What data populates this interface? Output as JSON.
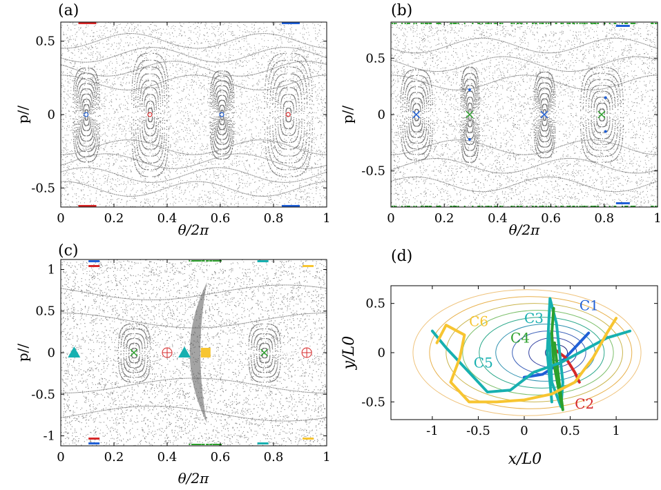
{
  "colors": {
    "scatter": "#8a8a8a",
    "red": "#d62728",
    "blue": "#1f5fd6",
    "green": "#2ca02c",
    "teal": "#17b0b0",
    "yellow": "#f7c531",
    "contour_dark": "#1a237e",
    "contour_mid": "#2aa88a",
    "contour_light": "#e8b04a"
  },
  "chart_data": [
    {
      "panel": "(a)",
      "type": "scatter",
      "title": "",
      "xlabel": "θ/2π",
      "ylabel": "p//",
      "xlim": [
        0,
        1
      ],
      "ylim": [
        -0.63,
        0.63
      ],
      "xticks": [
        "0",
        "0.2",
        "0.4",
        "0.6",
        "0.8",
        "1"
      ],
      "yticks": [
        "-0.5",
        "0",
        "0.5"
      ],
      "islands": [
        {
          "x": 0.095,
          "type": "o-point",
          "color": "blue"
        },
        {
          "x": 0.335,
          "type": "o-point",
          "color": "red"
        },
        {
          "x": 0.605,
          "type": "o-point",
          "color": "blue"
        },
        {
          "x": 0.855,
          "type": "o-point",
          "color": "red"
        }
      ],
      "boundary_marks": [
        {
          "x": 0.1,
          "edge": "both",
          "color": "red"
        },
        {
          "x": 0.865,
          "edge": "both",
          "color": "blue"
        }
      ],
      "grid": false
    },
    {
      "panel": "(b)",
      "type": "scatter",
      "title": "",
      "xlabel": "θ/2π",
      "ylabel": "p//",
      "xlim": [
        0,
        1
      ],
      "ylim": [
        -0.82,
        0.82
      ],
      "xticks": [
        "0",
        "0.2",
        "0.4",
        "0.6",
        "0.8",
        "1"
      ],
      "yticks": [
        "-0.5",
        "0",
        "0.5"
      ],
      "islands": [
        {
          "x": 0.095,
          "type": "x-point",
          "color": "blue"
        },
        {
          "x": 0.295,
          "type": "x-point",
          "color": "green"
        },
        {
          "x": 0.575,
          "type": "x-point",
          "color": "blue"
        },
        {
          "x": 0.79,
          "type": "x-point",
          "color": "green"
        }
      ],
      "boundary_marks": [
        {
          "x": 0.87,
          "edge": "both",
          "color": "blue"
        }
      ],
      "grid": false
    },
    {
      "panel": "(c)",
      "type": "scatter",
      "title": "",
      "xlabel": "θ/2π",
      "ylabel": "p//",
      "xlim": [
        0,
        1
      ],
      "ylim": [
        -1.12,
        1.12
      ],
      "xticks": [
        "0",
        "0.2",
        "0.4",
        "0.6",
        "0.8",
        "1"
      ],
      "yticks": [
        "-1",
        "-0.5",
        "0",
        "0.5",
        "1"
      ],
      "markers": [
        {
          "x": 0.05,
          "y": 0,
          "shape": "triangle",
          "color": "teal"
        },
        {
          "x": 0.465,
          "y": 0,
          "shape": "triangle",
          "color": "teal"
        },
        {
          "x": 0.545,
          "y": 0,
          "shape": "square",
          "color": "yellow"
        },
        {
          "x": 0.275,
          "y": 0,
          "shape": "x-point",
          "color": "green"
        },
        {
          "x": 0.4,
          "y": 0,
          "shape": "circle-cross",
          "color": "red"
        },
        {
          "x": 0.765,
          "y": 0,
          "shape": "x-point",
          "color": "green"
        },
        {
          "x": 0.925,
          "y": 0,
          "shape": "circle-cross",
          "color": "red"
        }
      ],
      "grid": false
    },
    {
      "panel": "(d)",
      "type": "line",
      "title": "",
      "xlabel": "x/L0",
      "ylabel": "y/L0",
      "xlim": [
        -1.45,
        1.45
      ],
      "ylim": [
        -0.68,
        0.68
      ],
      "xticks": [
        "-1",
        "-0.5",
        "0",
        "0.5",
        "1"
      ],
      "yticks": [
        "-0.5",
        "0",
        "0.5"
      ],
      "series": [
        {
          "name": "C1",
          "color": "blue"
        },
        {
          "name": "C2",
          "color": "red"
        },
        {
          "name": "C3",
          "color": "teal"
        },
        {
          "name": "C4",
          "color": "green"
        },
        {
          "name": "C5",
          "color": "teal"
        },
        {
          "name": "C6",
          "color": "yellow"
        }
      ],
      "curves": {
        "C1": [
          [
            0.0,
            -0.25
          ],
          [
            0.2,
            -0.22
          ],
          [
            0.4,
            -0.1
          ],
          [
            0.6,
            0.1
          ],
          [
            0.7,
            0.2
          ]
        ],
        "C2": [
          [
            0.35,
            0.02
          ],
          [
            0.45,
            -0.05
          ],
          [
            0.55,
            -0.2
          ],
          [
            0.6,
            -0.3
          ]
        ],
        "C3": [
          [
            0.3,
            -0.5
          ],
          [
            0.25,
            0.0
          ],
          [
            0.28,
            0.55
          ],
          [
            0.35,
            0.3
          ],
          [
            0.42,
            -0.3
          ],
          [
            0.4,
            -0.55
          ],
          [
            0.3,
            -0.3
          ],
          [
            0.27,
            0.2
          ]
        ],
        "C4": [
          [
            0.32,
            0.45
          ],
          [
            0.3,
            0.2
          ],
          [
            0.32,
            -0.1
          ],
          [
            0.4,
            -0.5
          ],
          [
            0.42,
            -0.58
          ],
          [
            0.38,
            -0.3
          ],
          [
            0.33,
            0.1
          ]
        ],
        "C5": [
          [
            -1.0,
            0.22
          ],
          [
            -0.85,
            0.05
          ],
          [
            -0.65,
            -0.15
          ],
          [
            -0.4,
            -0.4
          ],
          [
            -0.15,
            -0.38
          ],
          [
            0.1,
            -0.2
          ],
          [
            0.4,
            -0.1
          ],
          [
            0.7,
            0.05
          ],
          [
            0.9,
            0.15
          ],
          [
            1.15,
            0.22
          ]
        ],
        "C6": [
          [
            -0.95,
            0.1
          ],
          [
            -0.85,
            0.28
          ],
          [
            -0.65,
            0.18
          ],
          [
            -0.7,
            -0.05
          ],
          [
            -0.8,
            -0.3
          ],
          [
            -0.6,
            -0.5
          ],
          [
            -0.3,
            -0.5
          ],
          [
            0.0,
            -0.48
          ],
          [
            0.3,
            -0.42
          ],
          [
            0.55,
            -0.3
          ],
          [
            0.75,
            -0.05
          ],
          [
            0.9,
            0.2
          ],
          [
            1.0,
            0.35
          ]
        ]
      },
      "grid": false
    }
  ],
  "labels": {
    "C1": "C1",
    "C2": "C2",
    "C3": "C3",
    "C4": "C4",
    "C5": "C5",
    "C6": "C6"
  }
}
